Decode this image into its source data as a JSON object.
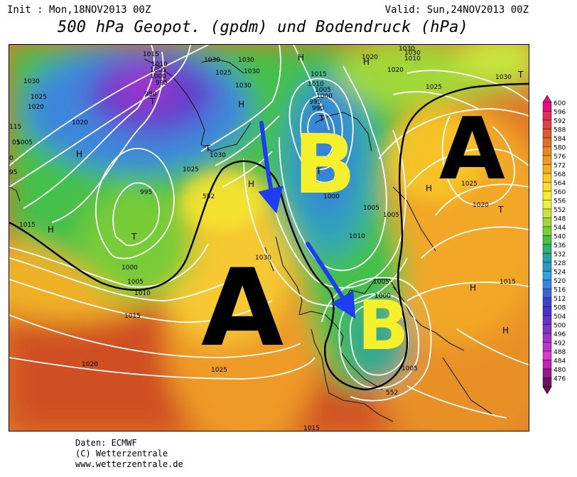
{
  "header": {
    "init": "Init : Mon,18NOV2013 00Z",
    "valid": "Valid: Sun,24NOV2013 00Z",
    "title": "500 hPa Geopot. (gpdm) und Bodendruck (hPa)"
  },
  "credits": {
    "line1": "Daten: ECMWF",
    "line2": "(C) Wetterzentrale",
    "line3": "www.wetterzentrale.de"
  },
  "legend": {
    "values": [
      "600",
      "596",
      "592",
      "588",
      "584",
      "580",
      "576",
      "572",
      "568",
      "564",
      "560",
      "556",
      "552",
      "548",
      "544",
      "540",
      "536",
      "532",
      "528",
      "524",
      "520",
      "516",
      "512",
      "508",
      "504",
      "500",
      "496",
      "492",
      "488",
      "484",
      "480",
      "476"
    ],
    "colors": [
      "#e8107c",
      "#e42a58",
      "#e04040",
      "#de5a2c",
      "#e07028",
      "#e48a20",
      "#ec9c18",
      "#f4b018",
      "#f8c820",
      "#f8dc28",
      "#f4ec30",
      "#e8f040",
      "#c8e43c",
      "#a0d838",
      "#78cc38",
      "#48c040",
      "#30b070",
      "#28a4a0",
      "#2c98c8",
      "#34a0e0",
      "#3c84dc",
      "#3c64d4",
      "#3c44cc",
      "#4c34c4",
      "#6434c4",
      "#8034c8",
      "#9c34cc",
      "#bc34d0",
      "#d43cd0",
      "#c024b4",
      "#98188c",
      "#6c1060"
    ]
  },
  "annotations": {
    "big_a_west": "A",
    "big_a_east": "A",
    "big_b_north": "B",
    "big_b_south": "B"
  },
  "pressure_labels": {
    "p1015a": "1015",
    "p1010a": "1010",
    "p1005a": "1005",
    "p1000a": "1000",
    "p995a": "995",
    "p990a": "990",
    "p1030a": "1030",
    "p1025a": "1025",
    "p1030b": "1030",
    "p1030c": "1030",
    "p1015b": "1015",
    "p1010b": "1010",
    "p1005b": "1005",
    "p1000b": "1000",
    "p995b": "995",
    "p990b": "990",
    "p1030d": "1030",
    "p1020a": "1020",
    "p1030e": "1030",
    "p1025b": "1025",
    "p1030f": "1030",
    "p1010c": "1010",
    "p1030g": "1030",
    "p1020b": "1020",
    "p1030h": "1030",
    "p1025c": "1025",
    "p1020c": "1020",
    "p1005c": "1005",
    "p1015c": "1015",
    "p1020d": "1020",
    "p1005d": "1005",
    "p1030i": "1030",
    "p995c": "995",
    "p1025d": "1025",
    "p1000c": "1000",
    "p1005e": "1005",
    "p1010d": "1010",
    "p1015d": "1015",
    "p1030j": "1030",
    "p1000d": "1000",
    "p1005f": "1005",
    "p1010e": "1010",
    "p1005g": "1005",
    "p1000e": "1000",
    "p1005h": "1005",
    "p1020e": "1020",
    "p1025e": "1025",
    "p1015e": "1015",
    "p1025f": "1025",
    "p1020f": "1020",
    "p1015f": "1015",
    "p1005i": "1005",
    "p1015g": "1015",
    "p1020g": "1020",
    "p552": "552",
    "p552b": "552",
    "p0": "0",
    "p05": "05",
    "p115": "115",
    "p95": "95"
  },
  "pressure_centers": {
    "h1": "H",
    "h2": "H",
    "h3": "H",
    "h4": "H",
    "h5": "H",
    "h6": "H",
    "h7": "H",
    "h8": "H",
    "h9": "H",
    "t1": "T",
    "t2": "T",
    "t3": "T",
    "t4": "T",
    "t5": "T",
    "t6": "T",
    "t7": "T"
  }
}
